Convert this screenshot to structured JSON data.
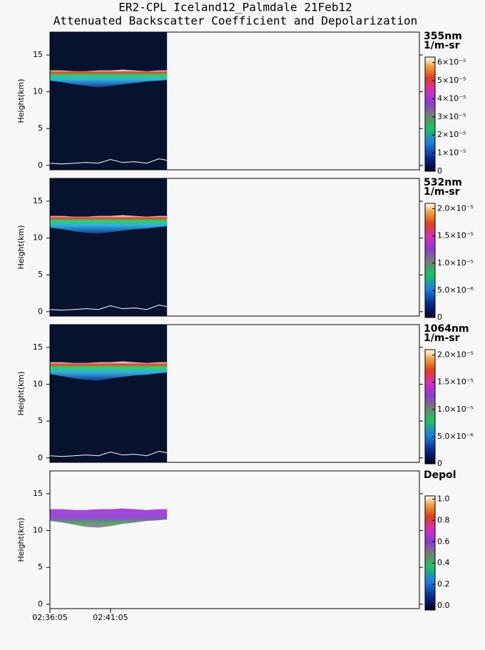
{
  "title": "ER2-CPL Iceland12_Palmdale 21Feb12",
  "subtitle": "Attenuated Backscatter Coefficient and Depolarization",
  "chart_data": [
    {
      "type": "curtain",
      "ylabel": "Height(km)",
      "ylim": [
        -0.6,
        18.1
      ],
      "yticks": [
        0,
        5,
        10,
        15
      ],
      "xlim": [
        0,
        1830
      ],
      "x": [
        0,
        60,
        120,
        180,
        240,
        300,
        360,
        420,
        480,
        540,
        580
      ],
      "cloud_top": [
        12.9,
        12.9,
        12.8,
        12.8,
        12.9,
        12.9,
        13.0,
        12.9,
        12.8,
        12.9,
        12.9
      ],
      "cloud_base": [
        11.5,
        11.3,
        11.0,
        10.8,
        10.6,
        10.8,
        11.0,
        11.2,
        11.4,
        11.5,
        11.6
      ],
      "surface": [
        0.3,
        0.2,
        0.3,
        0.4,
        0.3,
        0.8,
        0.4,
        0.5,
        0.3,
        0.9,
        0.7
      ],
      "colorbar": {
        "title": [
          "355nm",
          "1/m-sr"
        ],
        "clim": [
          0,
          6.3e-05
        ],
        "ticks": [
          0,
          {
            "value": 1e-05,
            "label": "1×10⁻⁵"
          },
          {
            "value": 2e-05,
            "label": "2×10⁻⁵"
          },
          {
            "value": 3e-05,
            "label": "3×10⁻⁵"
          },
          {
            "value": 4e-05,
            "label": "4×10⁻⁵"
          },
          {
            "value": 5e-05,
            "label": "5×10⁻⁵"
          },
          {
            "value": 6e-05,
            "label": "6×10⁻⁵"
          }
        ]
      }
    },
    {
      "type": "curtain",
      "ylabel": "Height(km)",
      "ylim": [
        -0.6,
        18.1
      ],
      "yticks": [
        0,
        5,
        10,
        15
      ],
      "xlim": [
        0,
        1830
      ],
      "x": [
        0,
        60,
        120,
        180,
        240,
        300,
        360,
        420,
        480,
        540,
        580
      ],
      "cloud_top": [
        13.0,
        13.0,
        12.9,
        12.9,
        13.0,
        13.0,
        13.1,
        13.0,
        12.9,
        13.0,
        13.0
      ],
      "cloud_base": [
        11.4,
        11.2,
        10.9,
        10.7,
        10.6,
        10.8,
        11.0,
        11.2,
        11.3,
        11.5,
        11.6
      ],
      "surface": [
        0.3,
        0.2,
        0.3,
        0.4,
        0.3,
        0.8,
        0.4,
        0.5,
        0.3,
        0.9,
        0.7
      ],
      "colorbar": {
        "title": [
          "532nm",
          "1/m-sr"
        ],
        "clim": [
          0,
          2.1e-05
        ],
        "ticks": [
          0,
          {
            "value": 5e-06,
            "label": "5.0×10⁻⁶"
          },
          {
            "value": 1e-05,
            "label": "1.0×10⁻⁵"
          },
          {
            "value": 1.5e-05,
            "label": "1.5×10⁻⁵"
          },
          {
            "value": 2e-05,
            "label": "2.0×10⁻⁵"
          }
        ]
      }
    },
    {
      "type": "curtain",
      "ylabel": "Height(km)",
      "ylim": [
        -0.6,
        18.1
      ],
      "yticks": [
        0,
        5,
        10,
        15
      ],
      "xlim": [
        0,
        1830
      ],
      "x": [
        0,
        60,
        120,
        180,
        240,
        300,
        360,
        420,
        480,
        540,
        580
      ],
      "cloud_top": [
        13.0,
        13.0,
        12.9,
        12.9,
        13.0,
        13.0,
        13.1,
        13.0,
        12.9,
        13.0,
        13.0
      ],
      "cloud_base": [
        11.4,
        11.1,
        10.8,
        10.6,
        10.5,
        10.8,
        11.0,
        11.2,
        11.3,
        11.5,
        11.6
      ],
      "surface": [
        0.3,
        0.2,
        0.3,
        0.4,
        0.3,
        0.8,
        0.4,
        0.5,
        0.3,
        0.9,
        0.7
      ],
      "colorbar": {
        "title": [
          "1064nm",
          "1/m-sr"
        ],
        "clim": [
          0,
          2.1e-05
        ],
        "ticks": [
          0,
          {
            "value": 5e-06,
            "label": "5.0×10⁻⁶"
          },
          {
            "value": 1e-05,
            "label": "1.0×10⁻⁵"
          },
          {
            "value": 1.5e-05,
            "label": "1.5×10⁻⁵"
          },
          {
            "value": 2e-05,
            "label": "2.0×10⁻⁵"
          }
        ]
      }
    },
    {
      "type": "depol",
      "ylabel": "Height(km)",
      "ylim": [
        -0.6,
        18.1
      ],
      "yticks": [
        0,
        5,
        10,
        15
      ],
      "xlim": [
        0,
        1830
      ],
      "xticks": [
        {
          "value": 0,
          "label": "02:36:05"
        },
        {
          "value": 300,
          "label": "02:41:05"
        }
      ],
      "x": [
        0,
        60,
        120,
        180,
        240,
        300,
        360,
        420,
        480,
        540,
        580
      ],
      "cloud_top": [
        12.9,
        12.9,
        12.8,
        12.8,
        12.9,
        12.9,
        13.0,
        12.9,
        12.8,
        12.9,
        12.9
      ],
      "cloud_base": [
        11.3,
        11.1,
        10.8,
        10.5,
        10.4,
        10.6,
        10.9,
        11.1,
        11.3,
        11.4,
        11.5
      ],
      "colorbar": {
        "title": [
          "Depol"
        ],
        "clim": [
          -0.04,
          1.03
        ],
        "ticks": [
          {
            "value": 0,
            "label": "0.0"
          },
          0.2,
          0.4,
          0.6,
          0.8,
          {
            "value": 1,
            "label": "1.0"
          }
        ]
      }
    }
  ]
}
